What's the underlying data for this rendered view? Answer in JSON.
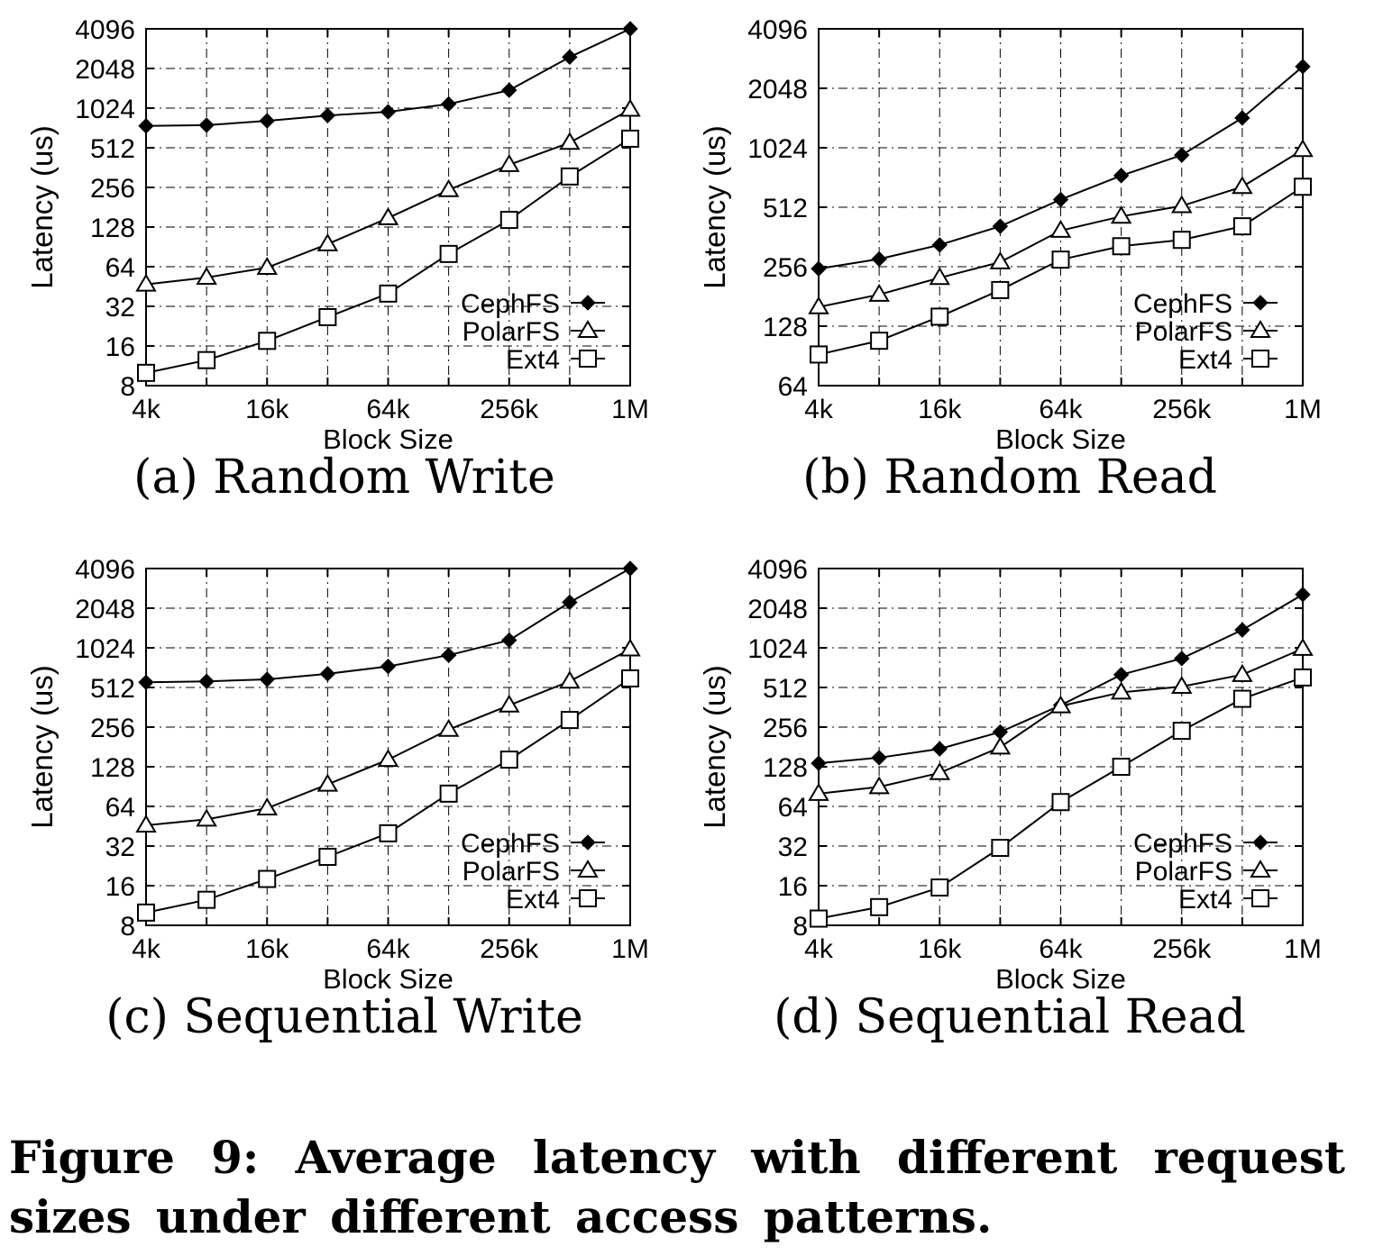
{
  "caption": "Figure 9: Average latency with different request sizes under different access patterns.",
  "colors": {
    "line": "#000000",
    "grid": "#000000",
    "background": "#ffffff"
  },
  "chart_data": [
    {
      "type": "line",
      "subcaption": "(a) Random Write",
      "xlabel": "Block Size",
      "ylabel": "Latency (us)",
      "x_scale": "log2",
      "y_scale": "log2",
      "x_kb": [
        4,
        8,
        16,
        32,
        64,
        128,
        256,
        512,
        1024
      ],
      "xticks": [
        {
          "kb": 4,
          "label": "4k"
        },
        {
          "kb": 16,
          "label": "16k"
        },
        {
          "kb": 64,
          "label": "64k"
        },
        {
          "kb": 256,
          "label": "256k"
        },
        {
          "kb": 1024,
          "label": "1M"
        }
      ],
      "yticks": [
        8,
        16,
        32,
        64,
        128,
        256,
        512,
        1024,
        2048,
        4096
      ],
      "ylim": [
        8,
        4096
      ],
      "grid": true,
      "legend": "bottom-right",
      "series": [
        {
          "name": "CephFS",
          "marker": "filled-diamond",
          "values": [
            750,
            760,
            820,
            900,
            960,
            1100,
            1400,
            2500,
            4096
          ]
        },
        {
          "name": "PolarFS",
          "marker": "open-triangle",
          "values": [
            47,
            53,
            63,
            95,
            150,
            245,
            380,
            560,
            1000
          ]
        },
        {
          "name": "Ext4",
          "marker": "open-square",
          "values": [
            10,
            12.5,
            17.5,
            26.5,
            40,
            80,
            145,
            310,
            600
          ]
        }
      ]
    },
    {
      "type": "line",
      "subcaption": "(b) Random Read",
      "xlabel": "Block Size",
      "ylabel": "Latency (us)",
      "x_scale": "log2",
      "y_scale": "log2",
      "x_kb": [
        4,
        8,
        16,
        32,
        64,
        128,
        256,
        512,
        1024
      ],
      "xticks": [
        {
          "kb": 4,
          "label": "4k"
        },
        {
          "kb": 16,
          "label": "16k"
        },
        {
          "kb": 64,
          "label": "64k"
        },
        {
          "kb": 256,
          "label": "256k"
        },
        {
          "kb": 1024,
          "label": "1M"
        }
      ],
      "yticks": [
        64,
        128,
        256,
        512,
        1024,
        2048,
        4096
      ],
      "ylim": [
        64,
        4096
      ],
      "grid": true,
      "legend": "bottom-right",
      "series": [
        {
          "name": "CephFS",
          "marker": "filled-diamond",
          "values": [
            250,
            280,
            330,
            410,
            560,
            740,
            940,
            1450,
            2640
          ]
        },
        {
          "name": "PolarFS",
          "marker": "open-triangle",
          "values": [
            160,
            185,
            225,
            270,
            390,
            460,
            520,
            650,
            1000
          ]
        },
        {
          "name": "Ext4",
          "marker": "open-square",
          "values": [
            92,
            108,
            143,
            195,
            278,
            325,
            350,
            410,
            650
          ]
        }
      ]
    },
    {
      "type": "line",
      "subcaption": "(c) Sequential Write",
      "xlabel": "Block Size",
      "ylabel": "Latency (us)",
      "x_scale": "log2",
      "y_scale": "log2",
      "x_kb": [
        4,
        8,
        16,
        32,
        64,
        128,
        256,
        512,
        1024
      ],
      "xticks": [
        {
          "kb": 4,
          "label": "4k"
        },
        {
          "kb": 16,
          "label": "16k"
        },
        {
          "kb": 64,
          "label": "64k"
        },
        {
          "kb": 256,
          "label": "256k"
        },
        {
          "kb": 1024,
          "label": "1M"
        }
      ],
      "yticks": [
        8,
        16,
        32,
        64,
        128,
        256,
        512,
        1024,
        2048,
        4096
      ],
      "ylim": [
        8,
        4096
      ],
      "grid": true,
      "legend": "bottom-right",
      "series": [
        {
          "name": "CephFS",
          "marker": "filled-diamond",
          "values": [
            560,
            570,
            590,
            650,
            740,
            900,
            1170,
            2270,
            4096
          ]
        },
        {
          "name": "PolarFS",
          "marker": "open-triangle",
          "values": [
            46,
            51,
            62,
            94,
            145,
            245,
            375,
            570,
            1000
          ]
        },
        {
          "name": "Ext4",
          "marker": "open-square",
          "values": [
            10,
            12.5,
            18,
            26.5,
            40,
            80,
            145,
            290,
            600
          ]
        }
      ]
    },
    {
      "type": "line",
      "subcaption": "(d) Sequential Read",
      "xlabel": "Block Size",
      "ylabel": "Latency (us)",
      "x_scale": "log2",
      "y_scale": "log2",
      "x_kb": [
        4,
        8,
        16,
        32,
        64,
        128,
        256,
        512,
        1024
      ],
      "xticks": [
        {
          "kb": 4,
          "label": "4k"
        },
        {
          "kb": 16,
          "label": "16k"
        },
        {
          "kb": 64,
          "label": "64k"
        },
        {
          "kb": 256,
          "label": "256k"
        },
        {
          "kb": 1024,
          "label": "1M"
        }
      ],
      "yticks": [
        8,
        16,
        32,
        64,
        128,
        256,
        512,
        1024,
        2048,
        4096
      ],
      "ylim": [
        8,
        4096
      ],
      "grid": true,
      "legend": "bottom-right",
      "series": [
        {
          "name": "CephFS",
          "marker": "filled-diamond",
          "values": [
            136,
            150,
            175,
            235,
            375,
            640,
            850,
            1400,
            2600
          ]
        },
        {
          "name": "PolarFS",
          "marker": "open-triangle",
          "values": [
            80,
            90,
            115,
            180,
            370,
            470,
            520,
            640,
            1010
          ]
        },
        {
          "name": "Ext4",
          "marker": "open-square",
          "values": [
            9,
            11,
            15.5,
            31,
            69,
            128,
            240,
            420,
            610
          ]
        }
      ]
    }
  ]
}
